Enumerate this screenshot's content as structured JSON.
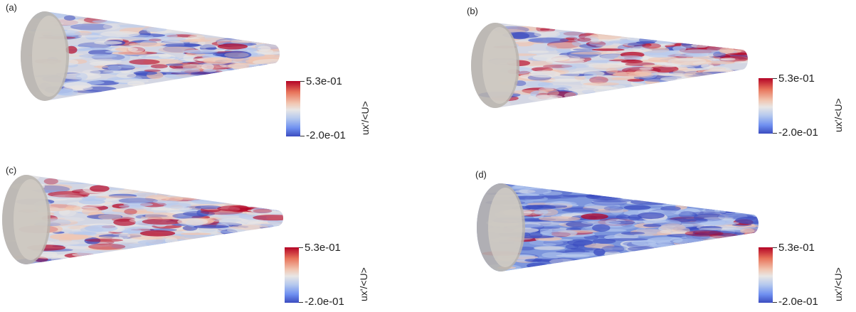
{
  "colorbar": {
    "max_label": "5.3e-01",
    "min_label": "-2.0e-01",
    "title": "ux'/<U>",
    "colors": [
      "#b40426",
      "#f1c5b0",
      "#e8e6e5",
      "#b3c7ee",
      "#3b4cc0"
    ]
  },
  "panels": [
    {
      "id": "a",
      "label": "(a)"
    },
    {
      "id": "b",
      "label": "(b)"
    },
    {
      "id": "c",
      "label": "(c)"
    },
    {
      "id": "d",
      "label": "(d)"
    }
  ]
}
